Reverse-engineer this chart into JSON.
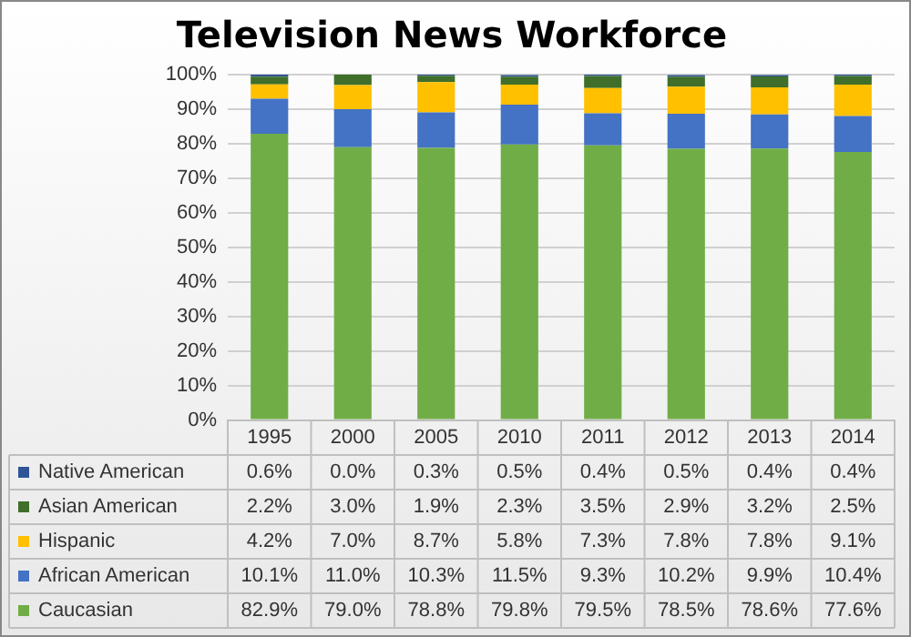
{
  "chart_data": {
    "type": "bar",
    "stacked": true,
    "title": "Television News Workforce",
    "categories": [
      "1995",
      "2000",
      "2005",
      "2010",
      "2011",
      "2012",
      "2013",
      "2014"
    ],
    "series": [
      {
        "name": "Caucasian",
        "color": "#70ad47",
        "values": [
          82.9,
          79.0,
          78.8,
          79.8,
          79.5,
          78.5,
          78.6,
          77.6
        ],
        "value_labels": [
          "82.9%",
          "79.0%",
          "78.8%",
          "79.8%",
          "79.5%",
          "78.5%",
          "78.6%",
          "77.6%"
        ]
      },
      {
        "name": "African American",
        "color": "#4472c4",
        "values": [
          10.1,
          11.0,
          10.3,
          11.5,
          9.3,
          10.2,
          9.9,
          10.4
        ],
        "value_labels": [
          "10.1%",
          "11.0%",
          "10.3%",
          "11.5%",
          "9.3%",
          "10.2%",
          "9.9%",
          "10.4%"
        ]
      },
      {
        "name": "Hispanic",
        "color": "#ffc000",
        "values": [
          4.2,
          7.0,
          8.7,
          5.8,
          7.3,
          7.8,
          7.8,
          9.1
        ],
        "value_labels": [
          "4.2%",
          "7.0%",
          "8.7%",
          "5.8%",
          "7.3%",
          "7.8%",
          "7.8%",
          "9.1%"
        ]
      },
      {
        "name": "Asian American",
        "color": "#3f6f2a",
        "values": [
          2.2,
          3.0,
          1.9,
          2.3,
          3.5,
          2.9,
          3.2,
          2.5
        ],
        "value_labels": [
          "2.2%",
          "3.0%",
          "1.9%",
          "2.3%",
          "3.5%",
          "2.9%",
          "3.2%",
          "2.5%"
        ]
      },
      {
        "name": "Native American",
        "color": "#2f5597",
        "values": [
          0.6,
          0.0,
          0.3,
          0.5,
          0.4,
          0.5,
          0.4,
          0.4
        ],
        "value_labels": [
          "0.6%",
          "0.0%",
          "0.3%",
          "0.5%",
          "0.4%",
          "0.5%",
          "0.4%",
          "0.4%"
        ]
      }
    ],
    "ylim": [
      0,
      100
    ],
    "yticks": [
      {
        "value": 0,
        "label": "0%"
      },
      {
        "value": 10,
        "label": "10%"
      },
      {
        "value": 20,
        "label": "20%"
      },
      {
        "value": 30,
        "label": "30%"
      },
      {
        "value": 40,
        "label": "40%"
      },
      {
        "value": 50,
        "label": "50%"
      },
      {
        "value": 60,
        "label": "60%"
      },
      {
        "value": 70,
        "label": "70%"
      },
      {
        "value": 80,
        "label": "80%"
      },
      {
        "value": 90,
        "label": "90%"
      },
      {
        "value": 100,
        "label": "100%"
      }
    ],
    "grid": "y",
    "legend": "bottom"
  }
}
